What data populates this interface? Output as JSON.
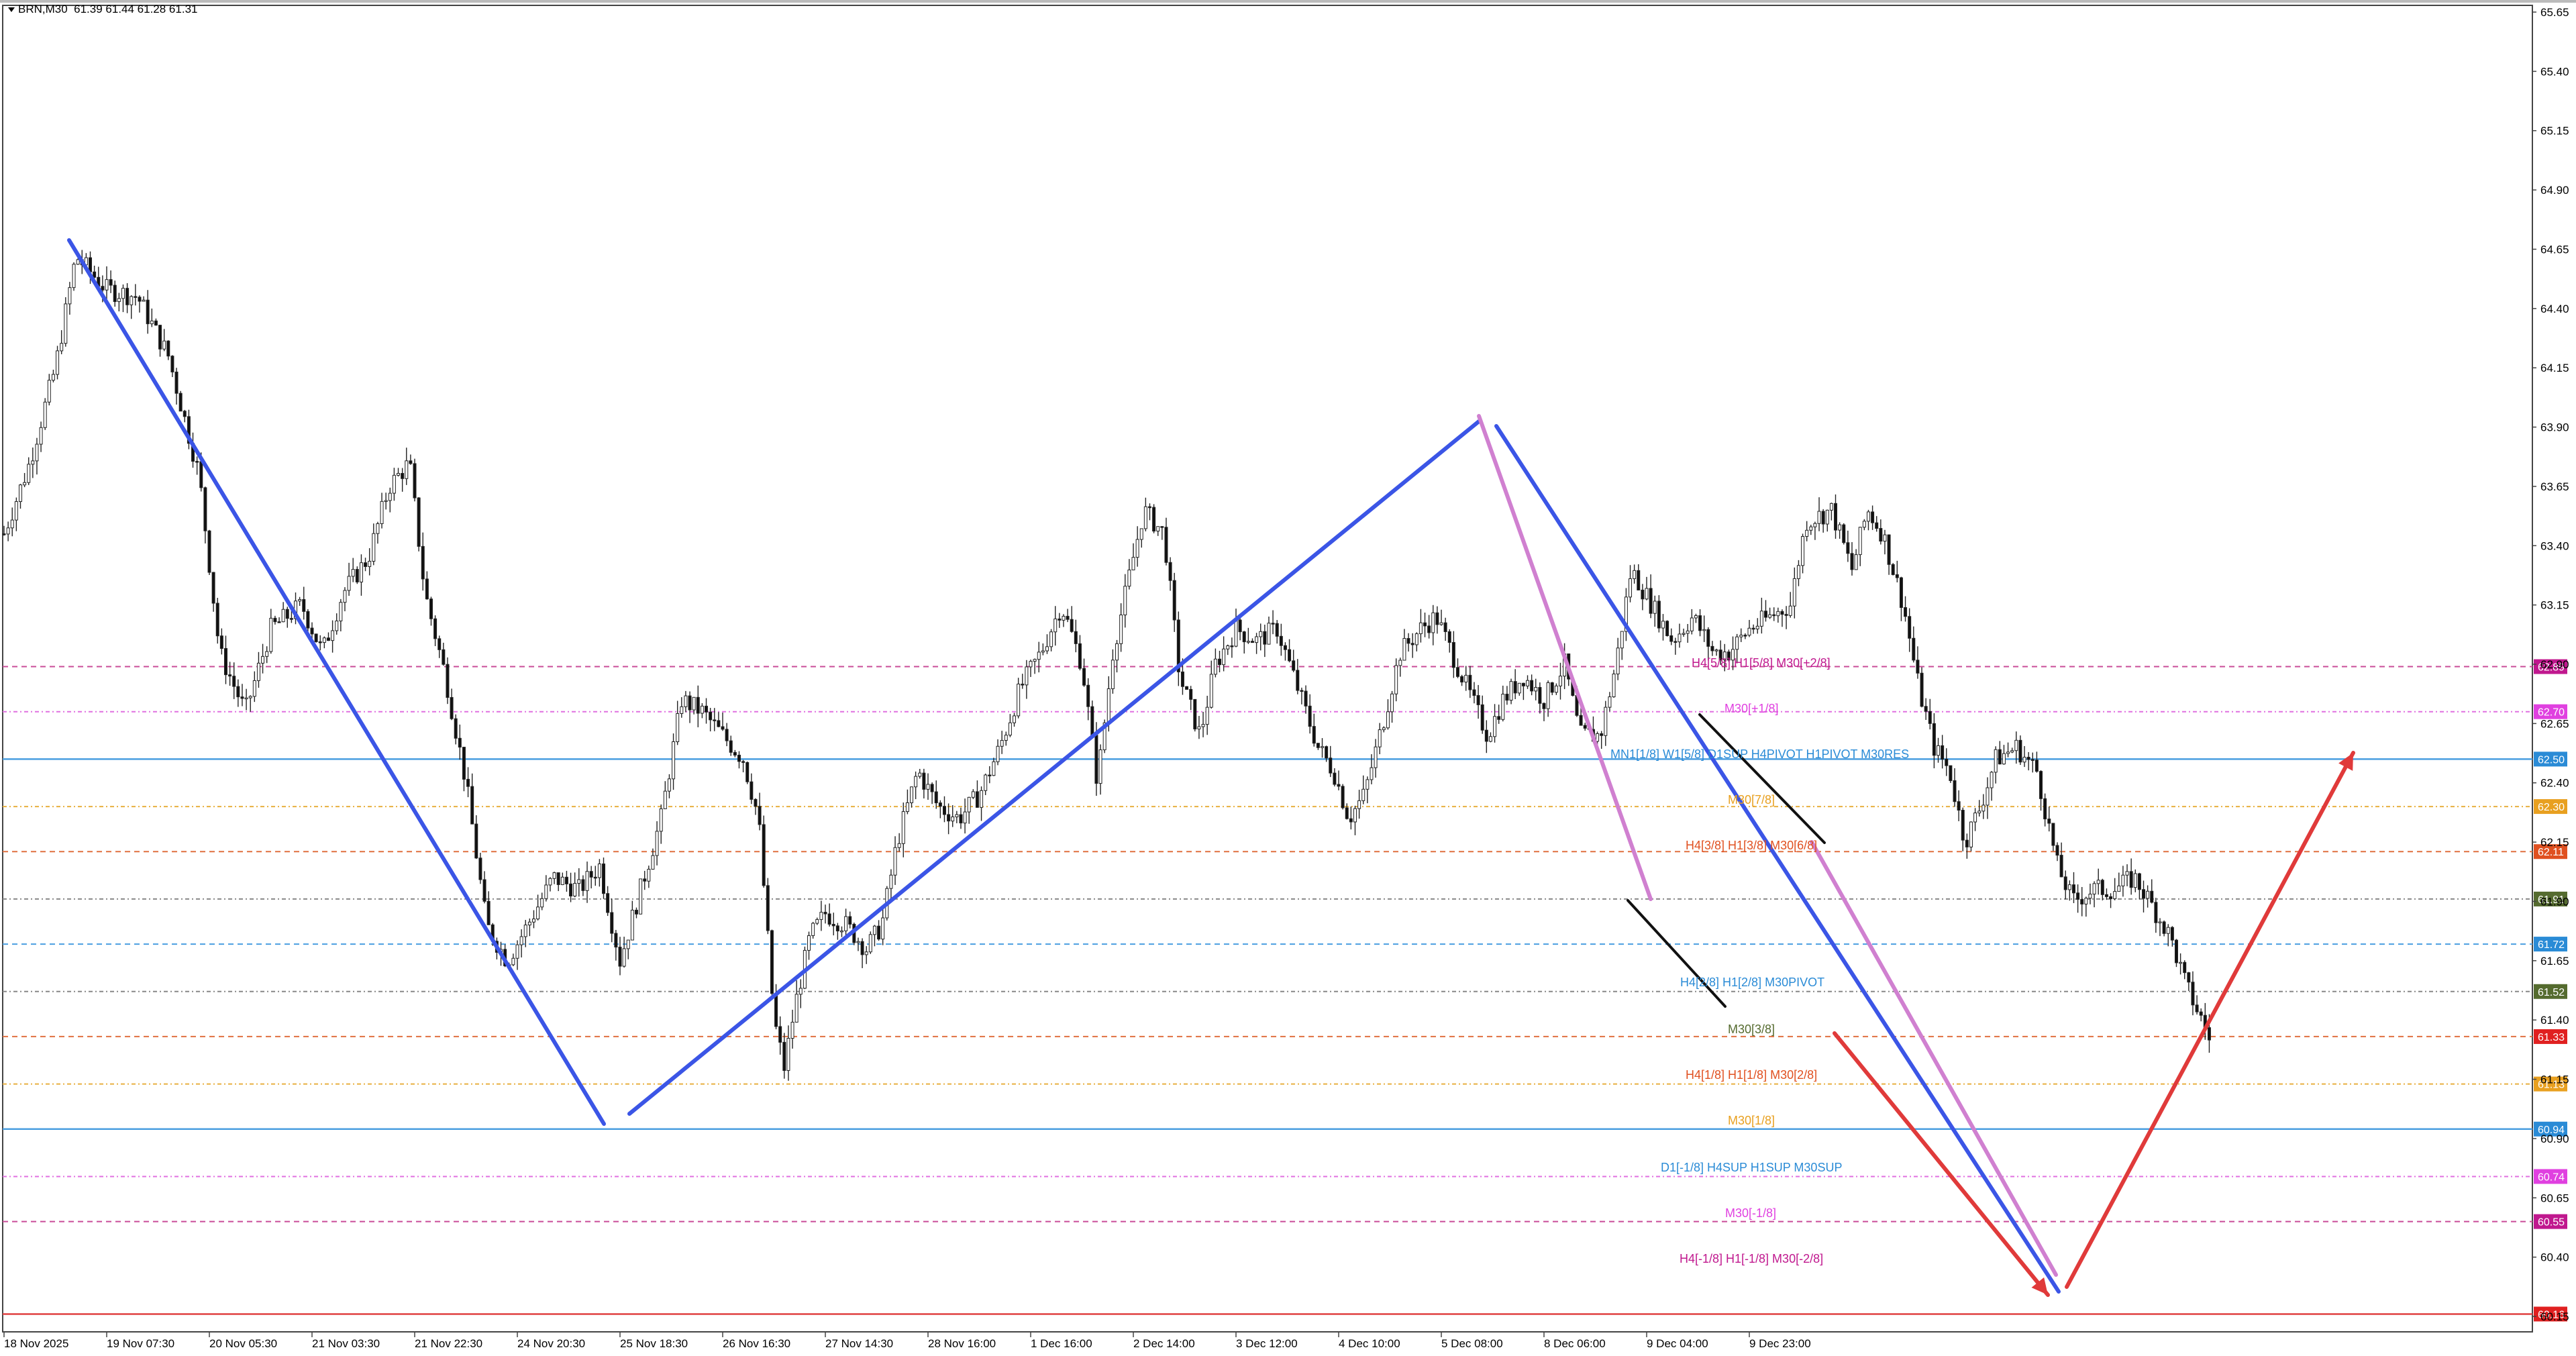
{
  "header": {
    "symbol": "BRN,M30",
    "ohlc": "61.39 61.44 61.28 61.31"
  },
  "chart_data": {
    "type": "candlestick",
    "symbol": "BRN",
    "timeframe": "M30",
    "y_ticks": [
      "65.65",
      "65.40",
      "65.15",
      "64.90",
      "64.65",
      "64.40",
      "64.15",
      "63.90",
      "63.65",
      "63.40",
      "63.15",
      "62.90",
      "62.65",
      "62.40",
      "62.15",
      "61.90",
      "61.65",
      "61.40",
      "61.15",
      "60.90",
      "60.65",
      "60.40",
      "60.15"
    ],
    "x_ticks": [
      "18 Nov 2025",
      "19 Nov 07:30",
      "20 Nov 05:30",
      "21 Nov 03:30",
      "21 Nov 22:30",
      "24 Nov 20:30",
      "25 Nov 18:30",
      "26 Nov 16:30",
      "27 Nov 14:30",
      "28 Nov 16:00",
      "1 Dec 16:00",
      "2 Dec 14:00",
      "3 Dec 12:00",
      "4 Dec 10:00",
      "5 Dec 08:00",
      "8 Dec 06:00",
      "9 Dec 04:00",
      "9 Dec 23:00"
    ],
    "price_path": [
      [
        0,
        63.45
      ],
      [
        0.25,
        63.75
      ],
      [
        0.5,
        64.15
      ],
      [
        0.7,
        64.62
      ],
      [
        1.0,
        64.48
      ],
      [
        1.3,
        64.45
      ],
      [
        1.6,
        64.2
      ],
      [
        1.9,
        63.7
      ],
      [
        2.1,
        62.95
      ],
      [
        2.35,
        62.7
      ],
      [
        2.6,
        63.05
      ],
      [
        2.9,
        63.15
      ],
      [
        3.1,
        62.95
      ],
      [
        3.3,
        63.2
      ],
      [
        3.55,
        63.35
      ],
      [
        3.75,
        63.65
      ],
      [
        3.95,
        63.75
      ],
      [
        4.1,
        63.2
      ],
      [
        4.3,
        62.85
      ],
      [
        4.5,
        62.4
      ],
      [
        4.7,
        61.8
      ],
      [
        4.9,
        61.65
      ],
      [
        5.1,
        61.8
      ],
      [
        5.35,
        62.0
      ],
      [
        5.6,
        61.95
      ],
      [
        5.8,
        62.05
      ],
      [
        6.0,
        61.65
      ],
      [
        6.2,
        61.95
      ],
      [
        6.4,
        62.25
      ],
      [
        6.6,
        62.75
      ],
      [
        6.8,
        62.7
      ],
      [
        7.0,
        62.6
      ],
      [
        7.2,
        62.5
      ],
      [
        7.35,
        62.25
      ],
      [
        7.5,
        61.4
      ],
      [
        7.6,
        61.2
      ],
      [
        7.7,
        61.45
      ],
      [
        7.85,
        61.75
      ],
      [
        8.0,
        61.85
      ],
      [
        8.2,
        61.8
      ],
      [
        8.4,
        61.7
      ],
      [
        8.55,
        61.8
      ],
      [
        8.7,
        62.15
      ],
      [
        8.9,
        62.45
      ],
      [
        9.1,
        62.3
      ],
      [
        9.3,
        62.25
      ],
      [
        9.5,
        62.35
      ],
      [
        9.7,
        62.55
      ],
      [
        9.9,
        62.8
      ],
      [
        10.1,
        62.95
      ],
      [
        10.3,
        63.15
      ],
      [
        10.5,
        62.9
      ],
      [
        10.65,
        62.4
      ],
      [
        10.8,
        62.95
      ],
      [
        10.95,
        63.25
      ],
      [
        11.1,
        63.55
      ],
      [
        11.3,
        63.45
      ],
      [
        11.45,
        62.85
      ],
      [
        11.65,
        62.6
      ],
      [
        11.8,
        62.9
      ],
      [
        12.0,
        63.05
      ],
      [
        12.2,
        63.0
      ],
      [
        12.4,
        63.05
      ],
      [
        12.6,
        62.8
      ],
      [
        12.8,
        62.55
      ],
      [
        12.95,
        62.45
      ],
      [
        13.1,
        62.25
      ],
      [
        13.25,
        62.35
      ],
      [
        13.4,
        62.6
      ],
      [
        13.6,
        62.95
      ],
      [
        13.8,
        63.05
      ],
      [
        13.95,
        63.1
      ],
      [
        14.1,
        62.95
      ],
      [
        14.3,
        62.75
      ],
      [
        14.45,
        62.6
      ],
      [
        14.6,
        62.75
      ],
      [
        14.8,
        62.85
      ],
      [
        15.0,
        62.75
      ],
      [
        15.2,
        62.9
      ],
      [
        15.35,
        62.6
      ],
      [
        15.55,
        62.6
      ],
      [
        15.7,
        62.9
      ],
      [
        15.85,
        63.3
      ],
      [
        16.05,
        63.15
      ],
      [
        16.25,
        63.0
      ],
      [
        16.45,
        63.1
      ],
      [
        16.65,
        62.95
      ],
      [
        16.8,
        62.95
      ],
      [
        17.0,
        63.05
      ],
      [
        17.2,
        63.1
      ],
      [
        17.4,
        63.15
      ],
      [
        17.55,
        63.5
      ],
      [
        17.8,
        63.55
      ],
      [
        18.0,
        63.3
      ],
      [
        18.15,
        63.55
      ],
      [
        18.3,
        63.45
      ],
      [
        18.5,
        63.15
      ],
      [
        18.65,
        62.8
      ],
      [
        18.8,
        62.55
      ],
      [
        18.95,
        62.45
      ],
      [
        19.1,
        62.15
      ],
      [
        19.25,
        62.3
      ],
      [
        19.4,
        62.5
      ],
      [
        19.6,
        62.55
      ],
      [
        19.8,
        62.45
      ],
      [
        20.0,
        62.05
      ],
      [
        20.15,
        61.9
      ],
      [
        20.35,
        61.95
      ],
      [
        20.55,
        61.95
      ],
      [
        20.75,
        62.0
      ],
      [
        20.9,
        61.9
      ],
      [
        21.1,
        61.75
      ],
      [
        21.25,
        61.55
      ],
      [
        21.5,
        61.31
      ]
    ],
    "levels": [
      {
        "price": 62.89,
        "label": "H4[5/8] H1[5/8] M30[+2/8]",
        "text_color": "#c0188e",
        "line_color": "#c94c98",
        "dash": "8,6",
        "tag": "62.89",
        "tag_color": "#c0188e",
        "label_pos": [
          2521,
          994
        ]
      },
      {
        "price": 62.7,
        "label": "M30[+1/8]",
        "text_color": "#e040e0",
        "line_color": "#e070e0",
        "dash": "6,4,2,4",
        "tag": "62.70",
        "tag_color": "#e040e0",
        "label_pos": [
          2570,
          1062
        ]
      },
      {
        "price": 62.5,
        "label": "MN1[1/8] W1[5/8] D1SUP H4PIVOT H1PIVOT M30RES",
        "text_color": "#2a8bd6",
        "line_color": "#4a9ee0",
        "dash": "",
        "tag": "62.50",
        "tag_color": "#2a8bd6",
        "label_pos": [
          2400,
          1130
        ]
      },
      {
        "price": 62.3,
        "label": "M30[7/8]",
        "text_color": "#e8a020",
        "line_color": "#e8b040",
        "dash": "6,4,2,4",
        "tag": "62.30",
        "tag_color": "#e8a020",
        "label_pos": [
          2575,
          1198
        ]
      },
      {
        "price": 62.11,
        "label": "H4[3/8] H1[3/8] M30[6/8]",
        "text_color": "#e05020",
        "line_color": "#e07040",
        "dash": "8,6",
        "tag": "62.11",
        "tag_color": "#e05020",
        "label_pos": [
          2512,
          1266
        ]
      },
      {
        "price": 61.91,
        "label": "",
        "text_color": "#556b2f",
        "line_color": "#888888",
        "dash": "6,4,2,4",
        "tag": "61.91",
        "tag_color": "#556b2f",
        "label_pos": [
          0,
          0
        ]
      },
      {
        "price": 61.72,
        "label": "H4[2/8] H1[2/8] M30PIVOT",
        "text_color": "#2a8bd6",
        "line_color": "#4a9ee0",
        "dash": "8,6",
        "tag": "61.72",
        "tag_color": "#2a8bd6",
        "label_pos": [
          2504,
          1470
        ]
      },
      {
        "price": 61.52,
        "label": "M30[3/8]",
        "text_color": "#556b2f",
        "line_color": "#888888",
        "dash": "6,4,2,4",
        "tag": "61.52",
        "tag_color": "#556b2f",
        "label_pos": [
          2575,
          1540
        ]
      },
      {
        "price": 61.33,
        "label": "H4[1/8] H1[1/8] M30[2/8]",
        "text_color": "#e05020",
        "line_color": "#e07040",
        "dash": "8,6",
        "tag": "61.33",
        "tag_color": "#e02020",
        "label_pos": [
          2512,
          1608
        ]
      },
      {
        "price": 61.13,
        "label": "M30[1/8]",
        "text_color": "#e8a020",
        "line_color": "#e8b040",
        "dash": "6,4,2,4",
        "tag": "61.13",
        "tag_color": "#e8a020",
        "label_pos": [
          2575,
          1676
        ]
      },
      {
        "price": 60.94,
        "label": "D1[-1/8] H4SUP H1SUP M30SUP",
        "text_color": "#2a8bd6",
        "line_color": "#4a9ee0",
        "dash": "",
        "tag": "60.94",
        "tag_color": "#2a8bd6",
        "label_pos": [
          2475,
          1746
        ]
      },
      {
        "price": 60.74,
        "label": "M30[-1/8]",
        "text_color": "#e040e0",
        "line_color": "#e070e0",
        "dash": "6,4,2,4",
        "tag": "60.74",
        "tag_color": "#e040e0",
        "label_pos": [
          2571,
          1814
        ]
      },
      {
        "price": 60.55,
        "label": "H4[-1/8] H1[-1/8] M30[-2/8]",
        "text_color": "#c0188e",
        "line_color": "#c94c98",
        "dash": "8,6",
        "tag": "60.55",
        "tag_color": "#c0188e",
        "label_pos": [
          2503,
          1882
        ]
      },
      {
        "price": 60.16,
        "label": "",
        "text_color": "#e02020",
        "line_color": "#e04040",
        "dash": "",
        "tag": "60.16",
        "tag_color": "#e02020",
        "label_pos": [
          0,
          0
        ]
      }
    ],
    "trendlines": [
      {
        "color": "#3b55e6",
        "width": 6,
        "points": [
          [
            103,
            358
          ],
          [
            900,
            1675
          ]
        ]
      },
      {
        "color": "#3b55e6",
        "width": 6,
        "points": [
          [
            938,
            1660
          ],
          [
            2204,
            628
          ]
        ]
      },
      {
        "color": "#3b55e6",
        "width": 6,
        "points": [
          [
            2230,
            635
          ],
          [
            3068,
            1925
          ]
        ]
      },
      {
        "color": "#d080d0",
        "width": 6,
        "points": [
          [
            2204,
            620
          ],
          [
            2460,
            1340
          ]
        ]
      },
      {
        "color": "#d080d0",
        "width": 6,
        "points": [
          [
            2700,
            1255
          ],
          [
            3064,
            1900
          ]
        ]
      },
      {
        "color": "#111111",
        "width": 4,
        "points": [
          [
            2533,
            1065
          ],
          [
            2719,
            1256
          ]
        ]
      },
      {
        "color": "#111111",
        "width": 4,
        "points": [
          [
            2426,
            1342
          ],
          [
            2571,
            1500
          ]
        ]
      },
      {
        "color": "#e03a3a",
        "width": 6,
        "points": [
          [
            2734,
            1540
          ],
          [
            3052,
            1930
          ]
        ],
        "arrow": true
      },
      {
        "color": "#e03a3a",
        "width": 6,
        "points": [
          [
            3080,
            1918
          ],
          [
            3507,
            1122
          ]
        ],
        "arrow": true
      }
    ]
  }
}
